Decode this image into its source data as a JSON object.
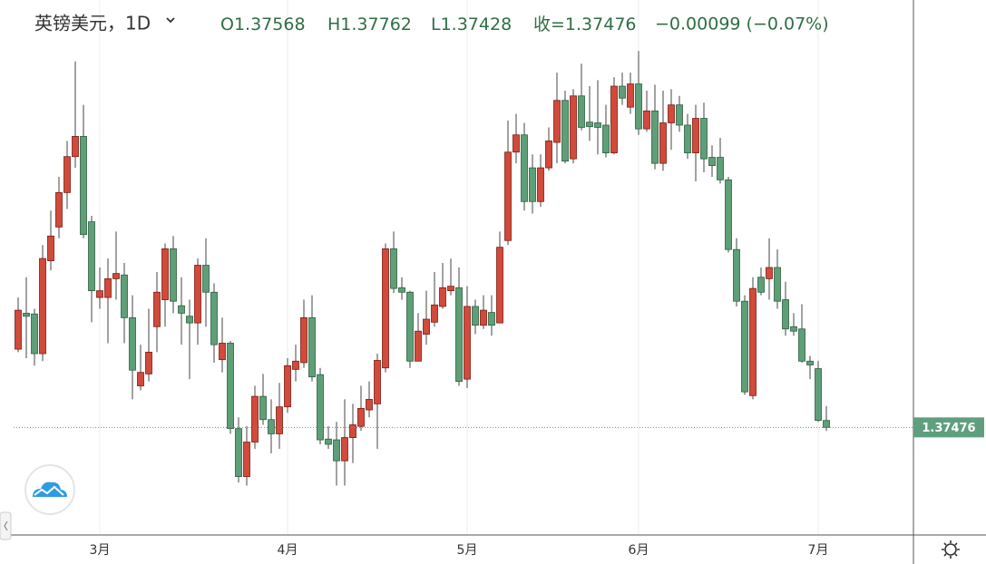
{
  "chart_data": {
    "type": "candlestick",
    "title": "英镑美元，1D",
    "header_labels": [
      "O",
      "H",
      "L",
      "收="
    ],
    "change": "−0.00099 (−0.07%)",
    "categories": [
      null,
      null,
      null,
      null,
      null,
      null,
      null,
      null,
      null,
      null,
      "3月",
      null,
      null,
      null,
      null,
      null,
      null,
      null,
      null,
      null,
      null,
      null,
      null,
      null,
      null,
      null,
      null,
      null,
      null,
      null,
      null,
      null,
      null,
      "4月",
      null,
      null,
      null,
      null,
      null,
      null,
      null,
      null,
      null,
      null,
      null,
      null,
      null,
      null,
      null,
      null,
      null,
      null,
      null,
      null,
      null,
      "5月",
      null,
      null,
      null,
      null,
      null,
      null,
      null,
      null,
      null,
      null,
      null,
      null,
      null,
      null,
      null,
      null,
      null,
      null,
      null,
      null,
      "6月",
      null,
      null,
      null,
      null,
      null,
      null,
      null,
      null,
      null,
      null,
      null,
      null,
      null,
      null,
      null,
      null,
      null,
      null,
      null,
      null,
      null,
      "7月",
      null
    ],
    "open": [
      1.3852,
      1.39,
      1.3899,
      1.3846,
      1.397,
      1.4015,
      1.4061,
      1.4109,
      1.4136,
      1.4022,
      1.3921,
      1.3921,
      1.3946,
      1.3951,
      1.3894,
      1.3803,
      1.3819,
      1.3882,
      1.3918,
      1.3986,
      1.391,
      1.3896,
      1.3887,
      1.3964,
      1.3928,
      1.3838,
      1.386,
      1.3746,
      1.3682,
      1.3728,
      1.3789,
      1.3758,
      1.3739,
      1.3775,
      1.3825,
      1.3834,
      1.3894,
      1.3818,
      1.3732,
      1.3731,
      1.3703,
      1.3734,
      1.3749,
      1.3771,
      1.3779,
      1.3827,
      1.3986,
      1.3934,
      1.3928,
      1.3836,
      1.3872,
      1.3888,
      1.3909,
      1.393,
      1.3934,
      1.3812,
      1.3909,
      1.3884,
      1.3901,
      1.3887,
      1.3997,
      1.4115,
      1.4138,
      1.4094,
      1.4049,
      1.4094,
      1.4128,
      1.4184,
      1.4106,
      1.419,
      1.4155,
      1.4154,
      1.4151,
      1.4114,
      1.4203,
      1.4175,
      1.4206,
      1.4146,
      1.417,
      1.41,
      1.4154,
      1.4178,
      1.4151,
      1.4114,
      1.416,
      1.4108,
      1.4108,
      1.4078,
      1.3985,
      1.3916,
      1.379,
      1.3948,
      1.3946,
      1.3961,
      1.3918,
      1.3882,
      1.3879,
      1.3836,
      1.3826,
      1.37568
    ],
    "high": [
      1.3921,
      1.3948,
      1.3906,
      1.3991,
      1.4037,
      1.4082,
      1.413,
      1.4236,
      1.4178,
      1.403,
      1.3961,
      1.3973,
      1.4009,
      1.3967,
      1.3924,
      1.3858,
      1.3906,
      1.3955,
      1.3993,
      1.4003,
      1.3948,
      1.3918,
      1.3973,
      1.4,
      1.394,
      1.3894,
      1.3863,
      1.3761,
      1.3749,
      1.3803,
      1.3819,
      1.3785,
      1.3807,
      1.384,
      1.3858,
      1.3918,
      1.3924,
      1.3827,
      1.3749,
      1.3755,
      1.3785,
      1.3779,
      1.3803,
      1.3809,
      1.3846,
      1.3993,
      1.4009,
      1.3948,
      1.393,
      1.39,
      1.393,
      1.3955,
      1.3967,
      1.3973,
      1.3961,
      1.3936,
      1.3918,
      1.3924,
      1.3924,
      1.4009,
      1.4157,
      1.4166,
      1.4154,
      1.4112,
      1.4112,
      1.4148,
      1.4221,
      1.4197,
      1.4199,
      1.4233,
      1.4203,
      1.4211,
      1.4178,
      1.4215,
      1.4221,
      1.4221,
      1.425,
      1.4197,
      1.4205,
      1.4197,
      1.4199,
      1.419,
      1.4166,
      1.4178,
      1.4181,
      1.4124,
      1.4134,
      1.4082,
      1.4,
      1.3924,
      1.3948,
      1.3961,
      1.4,
      1.3985,
      1.3942,
      1.39,
      1.3912,
      1.3843,
      1.3836,
      1.37762
    ],
    "low": [
      1.3848,
      1.384,
      1.383,
      1.3836,
      1.3957,
      1.4,
      1.4039,
      1.4094,
      1.4,
      1.3888,
      1.3906,
      1.386,
      1.3918,
      1.386,
      1.3785,
      1.3797,
      1.3809,
      1.3848,
      1.3882,
      1.39,
      1.3858,
      1.3812,
      1.3858,
      1.3882,
      1.3834,
      1.3821,
      1.3739,
      1.3674,
      1.367,
      1.3719,
      1.3751,
      1.3713,
      1.3719,
      1.3767,
      1.3809,
      1.3827,
      1.3809,
      1.3725,
      1.3719,
      1.367,
      1.367,
      1.37,
      1.3743,
      1.3761,
      1.3719,
      1.3821,
      1.3927,
      1.3918,
      1.3827,
      1.3836,
      1.3858,
      1.3882,
      1.3906,
      1.3924,
      1.3803,
      1.38,
      1.3872,
      1.3879,
      1.387,
      1.3887,
      1.3991,
      1.41,
      1.4037,
      1.4033,
      1.4042,
      1.409,
      1.41,
      1.41,
      1.41,
      1.4144,
      1.413,
      1.4112,
      1.4108,
      1.4112,
      1.4178,
      1.4166,
      1.4138,
      1.4142,
      1.4092,
      1.409,
      1.4118,
      1.4142,
      1.4106,
      1.4076,
      1.4088,
      1.4082,
      1.4073,
      1.3981,
      1.3909,
      1.3791,
      1.3785,
      1.3924,
      1.3918,
      1.3906,
      1.387,
      1.387,
      1.3834,
      1.3812,
      1.3755,
      1.37428
    ],
    "close": [
      1.3904,
      1.3896,
      1.3846,
      1.3973,
      1.4003,
      1.4061,
      1.4109,
      1.4136,
      1.4005,
      1.393,
      1.393,
      1.3946,
      1.3953,
      1.3894,
      1.3824,
      1.3821,
      1.3848,
      1.3928,
      1.3986,
      1.3916,
      1.39,
      1.3887,
      1.3964,
      1.3928,
      1.3858,
      1.386,
      1.3746,
      1.3682,
      1.3728,
      1.3789,
      1.3758,
      1.3739,
      1.3775,
      1.383,
      1.3836,
      1.3894,
      1.3815,
      1.3731,
      1.3725,
      1.3703,
      1.3734,
      1.3751,
      1.3773,
      1.3785,
      1.3837,
      1.3986,
      1.3933,
      1.3928,
      1.3836,
      1.3876,
      1.3892,
      1.3911,
      1.3934,
      1.3936,
      1.3809,
      1.3909,
      1.3884,
      1.3904,
      1.3884,
      1.3988,
      1.4115,
      1.4138,
      1.4049,
      1.4049,
      1.4094,
      1.413,
      1.4184,
      1.4103,
      1.419,
      1.4148,
      1.4149,
      1.4148,
      1.4114,
      1.4203,
      1.4187,
      1.4206,
      1.4146,
      1.417,
      1.41,
      1.4154,
      1.4178,
      1.4151,
      1.4114,
      1.416,
      1.4106,
      1.4097,
      1.4078,
      1.3985,
      1.3916,
      1.3795,
      1.3933,
      1.3928,
      1.3961,
      1.3916,
      1.3879,
      1.3876,
      1.3836,
      1.3831,
      1.3757,
      1.37476
    ],
    "up_color": "#d14a3b",
    "down_color": "#5e9f78",
    "last_price_color": "#5f9f7d",
    "ylim": [
      1.3604,
      1.4318
    ]
  }
}
